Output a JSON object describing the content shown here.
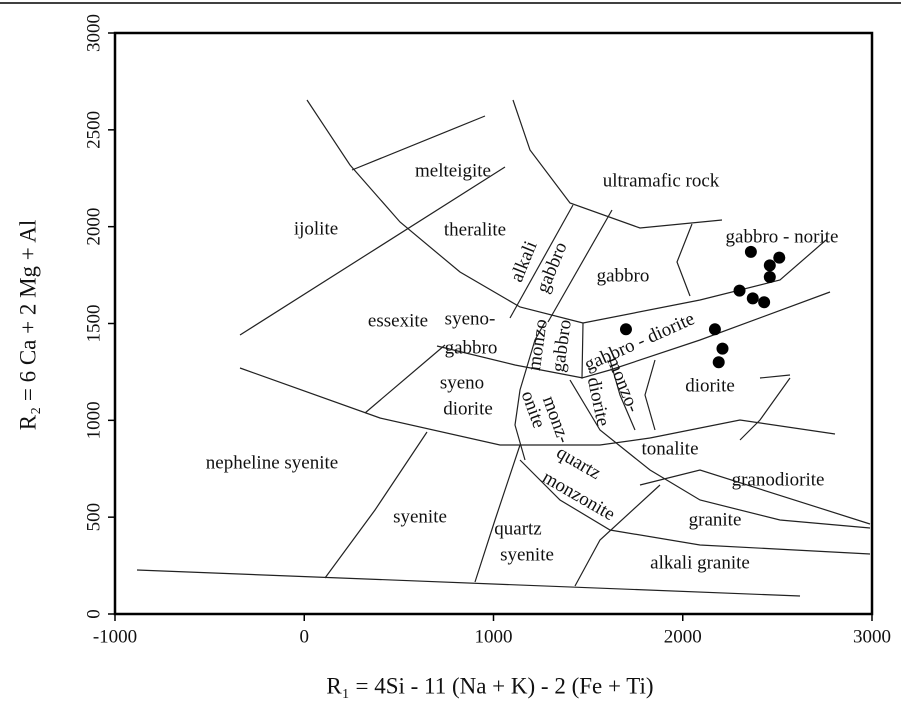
{
  "chart_data": {
    "type": "scatter",
    "xlabel": "R₁ = 4Si - 11 (Na + K) - 2 (Fe + Ti)",
    "ylabel": "R₂ = 6 Ca + 2 Mg + Al",
    "x": [
      2360,
      2460,
      2510,
      2460,
      2300,
      2370,
      2430,
      1700,
      2170,
      2210,
      2190
    ],
    "values": [
      1870,
      1800,
      1840,
      1740,
      1670,
      1630,
      1610,
      1470,
      1470,
      1370,
      1300
    ],
    "color": "#000000",
    "xlim": [
      -1000,
      3000
    ],
    "xticks": [
      -1000,
      0,
      1000,
      2000,
      3000
    ],
    "ylim": [
      0,
      3000
    ],
    "yticks": [
      0,
      500,
      1000,
      1500,
      2000,
      2500,
      3000
    ],
    "annotations": [
      "melteigite",
      "ultramafic rock",
      "ijolite",
      "theralite",
      "gabbro - norite",
      "alkali",
      "gabbro",
      "gabbro",
      "essexite",
      "syeno-",
      "gabbro",
      "monzo",
      "gabbro",
      "gabbro - diorite",
      "syeno",
      "diorite",
      "onite",
      "monz-",
      "diorite",
      "monzo-",
      "diorite",
      "tonalite",
      "nepheline syenite",
      "quartz",
      "monzonite",
      "granodiorite",
      "syenite",
      "granite",
      "quartz",
      "syenite",
      "alkali granite"
    ]
  }
}
